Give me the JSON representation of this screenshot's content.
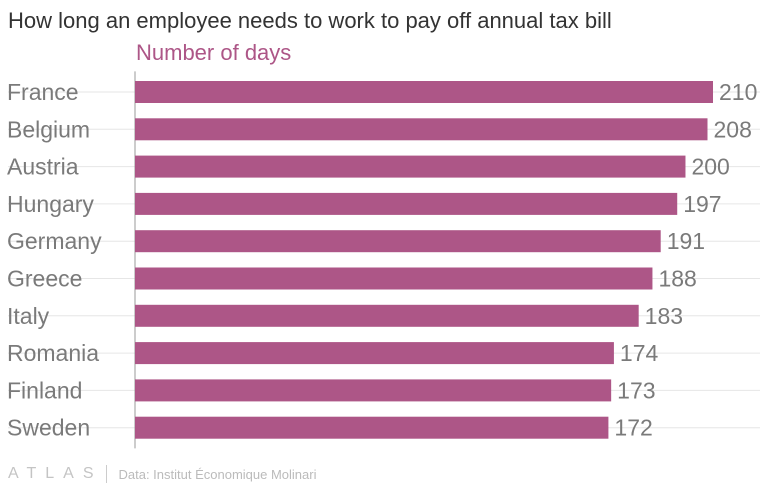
{
  "title": "How long an employee needs to work to pay off annual tax bill",
  "colors": {
    "bar": "#ad5687",
    "subtitle": "#ad5687",
    "label": "#7a7a7a",
    "gridline": "#e6e6e6",
    "axis": "#999999"
  },
  "footer": {
    "logo": "ATLAS",
    "source": "Data: Institut Économique Molinari"
  },
  "chart_data": {
    "type": "bar",
    "orientation": "horizontal",
    "title": "How long an employee needs to work to pay off annual tax bill",
    "subtitle": "Number of days",
    "categories": [
      "France",
      "Belgium",
      "Austria",
      "Hungary",
      "Germany",
      "Greece",
      "Italy",
      "Romania",
      "Finland",
      "Sweden"
    ],
    "values": [
      210,
      208,
      200,
      197,
      191,
      188,
      183,
      174,
      173,
      172
    ],
    "data_labels": true,
    "grid": true,
    "xlim": [
      0,
      210
    ]
  }
}
